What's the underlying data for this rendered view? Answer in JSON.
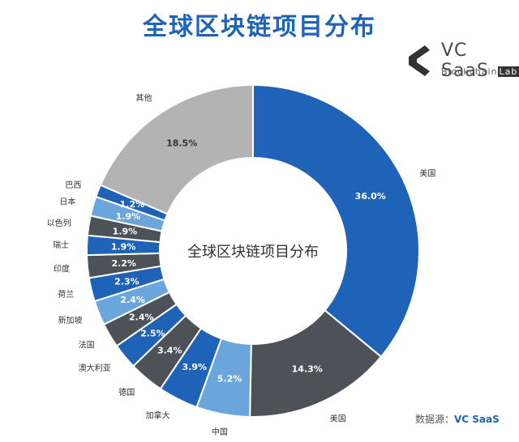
{
  "header": {
    "title": "全球区块链项目分布"
  },
  "logo": {
    "name": "VC SaaS",
    "sub_a": "Blockchain",
    "sub_b": "Lab"
  },
  "source": {
    "label": "数据源：",
    "brand": "VC SaaS"
  },
  "chart_data": {
    "type": "pie",
    "donut": true,
    "center_label": "全球区块链项目分布",
    "unit": "%",
    "slices": [
      {
        "label": "美国",
        "value": 36.0,
        "display": "36.0%",
        "color": "#1f63b9"
      },
      {
        "label": "美国",
        "value": 14.3,
        "display": "14.3%",
        "color": "#4d5259"
      },
      {
        "label": "中国",
        "value": 5.2,
        "display": "5.2%",
        "color": "#6aa5db"
      },
      {
        "label": "加拿大",
        "value": 3.9,
        "display": "3.9%",
        "color": "#1f63b9"
      },
      {
        "label": "德国",
        "value": 3.4,
        "display": "3.4%",
        "color": "#4d5259"
      },
      {
        "label": "澳大利亚",
        "value": 2.5,
        "display": "2.5%",
        "color": "#1f63b9"
      },
      {
        "label": "法国",
        "value": 2.4,
        "display": "2.4%",
        "color": "#4d5259"
      },
      {
        "label": "新加坡",
        "value": 2.4,
        "display": "2.4%",
        "color": "#6aa5db"
      },
      {
        "label": "荷兰",
        "value": 2.3,
        "display": "2.3%",
        "color": "#1f63b9"
      },
      {
        "label": "印度",
        "value": 2.2,
        "display": "2.2%",
        "color": "#4d5259"
      },
      {
        "label": "瑞士",
        "value": 1.9,
        "display": "1.9%",
        "color": "#1f63b9"
      },
      {
        "label": "以色列",
        "value": 1.9,
        "display": "1.9%",
        "color": "#4d5259"
      },
      {
        "label": "日本",
        "value": 1.9,
        "display": "1.9%",
        "color": "#6aa5db"
      },
      {
        "label": "巴西",
        "value": 1.2,
        "display": "1.2%",
        "color": "#1f63b9"
      },
      {
        "label": "其他",
        "value": 18.5,
        "display": "18.5%",
        "color": "#b3b3b3"
      }
    ]
  }
}
